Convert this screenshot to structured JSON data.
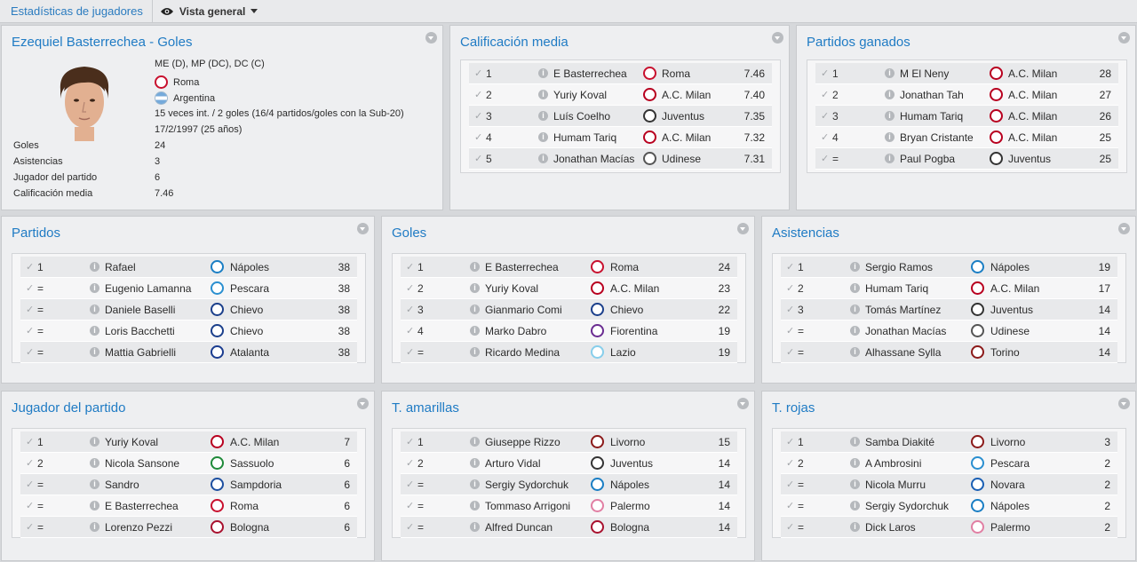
{
  "topbar": {
    "breadcrumb": "Estadísticas de jugadores",
    "view_label": "Vista general"
  },
  "colors": {
    "accent": "#1f7bc4"
  },
  "profile": {
    "title": "Ezequiel Basterrechea - Goles",
    "positions": "ME (D), MP (DC), DC (C)",
    "club": "Roma",
    "nation": "Argentina",
    "caps": "15 veces int. / 2 goles (16/4 partidos/goles con la Sub-20)",
    "dob": "17/2/1997 (25 años)",
    "stats": [
      {
        "label": "Goles",
        "value": "24"
      },
      {
        "label": "Asistencias",
        "value": "3"
      },
      {
        "label": "Jugador del partido",
        "value": "6"
      },
      {
        "label": "Calificación media",
        "value": "7.46"
      }
    ]
  },
  "panels": {
    "calificacion": {
      "title": "Calificación media",
      "rows": [
        {
          "rank": "1",
          "player": "E Basterrechea",
          "club": "Roma",
          "value": "7.46",
          "color": "#c8102e"
        },
        {
          "rank": "2",
          "player": "Yuriy Koval",
          "club": "A.C. Milan",
          "value": "7.40",
          "color": "#b8001f"
        },
        {
          "rank": "3",
          "player": "Luís Coelho",
          "club": "Juventus",
          "value": "7.35",
          "color": "#333333"
        },
        {
          "rank": "4",
          "player": "Humam Tariq",
          "club": "A.C. Milan",
          "value": "7.32",
          "color": "#b8001f"
        },
        {
          "rank": "5",
          "player": "Jonathan Macías",
          "club": "Udinese",
          "value": "7.31",
          "color": "#555555"
        }
      ]
    },
    "ganados": {
      "title": "Partidos ganados",
      "rows": [
        {
          "rank": "1",
          "player": "M El Neny",
          "club": "A.C. Milan",
          "value": "28",
          "color": "#b8001f"
        },
        {
          "rank": "2",
          "player": "Jonathan Tah",
          "club": "A.C. Milan",
          "value": "27",
          "color": "#b8001f"
        },
        {
          "rank": "3",
          "player": "Humam Tariq",
          "club": "A.C. Milan",
          "value": "26",
          "color": "#b8001f"
        },
        {
          "rank": "4",
          "player": "Bryan Cristante",
          "club": "A.C. Milan",
          "value": "25",
          "color": "#b8001f"
        },
        {
          "rank": "=",
          "player": "Paul Pogba",
          "club": "Juventus",
          "value": "25",
          "color": "#333333"
        }
      ]
    },
    "partidos": {
      "title": "Partidos",
      "rows": [
        {
          "rank": "1",
          "player": "Rafael",
          "club": "Nápoles",
          "value": "38",
          "color": "#1a7ec4"
        },
        {
          "rank": "=",
          "player": "Eugenio Lamanna",
          "club": "Pescara",
          "value": "38",
          "color": "#2a8fd0"
        },
        {
          "rank": "=",
          "player": "Daniele Baselli",
          "club": "Chievo",
          "value": "38",
          "color": "#1b3f8b"
        },
        {
          "rank": "=",
          "player": "Loris Bacchetti",
          "club": "Chievo",
          "value": "38",
          "color": "#1b3f8b"
        },
        {
          "rank": "=",
          "player": "Mattia Gabrielli",
          "club": "Atalanta",
          "value": "38",
          "color": "#1a3c8f"
        }
      ]
    },
    "goles": {
      "title": "Goles",
      "rows": [
        {
          "rank": "1",
          "player": "E Basterrechea",
          "club": "Roma",
          "value": "24",
          "color": "#c8102e"
        },
        {
          "rank": "2",
          "player": "Yuriy Koval",
          "club": "A.C. Milan",
          "value": "23",
          "color": "#b8001f"
        },
        {
          "rank": "3",
          "player": "Gianmario Comi",
          "club": "Chievo",
          "value": "22",
          "color": "#1b3f8b"
        },
        {
          "rank": "4",
          "player": "Marko Dabro",
          "club": "Fiorentina",
          "value": "19",
          "color": "#6a2c91"
        },
        {
          "rank": "=",
          "player": "Ricardo Medina",
          "club": "Lazio",
          "value": "19",
          "color": "#87ceeb"
        }
      ]
    },
    "asistencias": {
      "title": "Asistencias",
      "rows": [
        {
          "rank": "1",
          "player": "Sergio Ramos",
          "club": "Nápoles",
          "value": "19",
          "color": "#1a7ec4"
        },
        {
          "rank": "2",
          "player": "Humam Tariq",
          "club": "A.C. Milan",
          "value": "17",
          "color": "#b8001f"
        },
        {
          "rank": "3",
          "player": "Tomás Martínez",
          "club": "Juventus",
          "value": "14",
          "color": "#333333"
        },
        {
          "rank": "=",
          "player": "Jonathan Macías",
          "club": "Udinese",
          "value": "14",
          "color": "#555555"
        },
        {
          "rank": "=",
          "player": "Alhassane Sylla",
          "club": "Torino",
          "value": "14",
          "color": "#8b1a1a"
        }
      ]
    },
    "jugador": {
      "title": "Jugador del partido",
      "rows": [
        {
          "rank": "1",
          "player": "Yuriy Koval",
          "club": "A.C. Milan",
          "value": "7",
          "color": "#b8001f"
        },
        {
          "rank": "2",
          "player": "Nicola Sansone",
          "club": "Sassuolo",
          "value": "6",
          "color": "#1f8a3a"
        },
        {
          "rank": "=",
          "player": "Sandro",
          "club": "Sampdoria",
          "value": "6",
          "color": "#1d4fa0"
        },
        {
          "rank": "=",
          "player": "E Basterrechea",
          "club": "Roma",
          "value": "6",
          "color": "#c8102e"
        },
        {
          "rank": "=",
          "player": "Lorenzo Pezzi",
          "club": "Bologna",
          "value": "6",
          "color": "#a8102e"
        }
      ]
    },
    "amarillas": {
      "title": "T. amarillas",
      "rows": [
        {
          "rank": "1",
          "player": "Giuseppe Rizzo",
          "club": "Livorno",
          "value": "15",
          "color": "#8b1a1a"
        },
        {
          "rank": "2",
          "player": "Arturo Vidal",
          "club": "Juventus",
          "value": "14",
          "color": "#333333"
        },
        {
          "rank": "=",
          "player": "Sergiy Sydorchuk",
          "club": "Nápoles",
          "value": "14",
          "color": "#1a7ec4"
        },
        {
          "rank": "=",
          "player": "Tommaso Arrigoni",
          "club": "Palermo",
          "value": "14",
          "color": "#e17fa3"
        },
        {
          "rank": "=",
          "player": "Alfred Duncan",
          "club": "Bologna",
          "value": "14",
          "color": "#a8102e"
        }
      ]
    },
    "rojas": {
      "title": "T. rojas",
      "rows": [
        {
          "rank": "1",
          "player": "Samba Diakité",
          "club": "Livorno",
          "value": "3",
          "color": "#8b1a1a"
        },
        {
          "rank": "2",
          "player": "A Ambrosini",
          "club": "Pescara",
          "value": "2",
          "color": "#2a8fd0"
        },
        {
          "rank": "=",
          "player": "Nicola Murru",
          "club": "Novara",
          "value": "2",
          "color": "#1a5fb4"
        },
        {
          "rank": "=",
          "player": "Sergiy Sydorchuk",
          "club": "Nápoles",
          "value": "2",
          "color": "#1a7ec4"
        },
        {
          "rank": "=",
          "player": "Dick Laros",
          "club": "Palermo",
          "value": "2",
          "color": "#e17fa3"
        }
      ]
    }
  }
}
